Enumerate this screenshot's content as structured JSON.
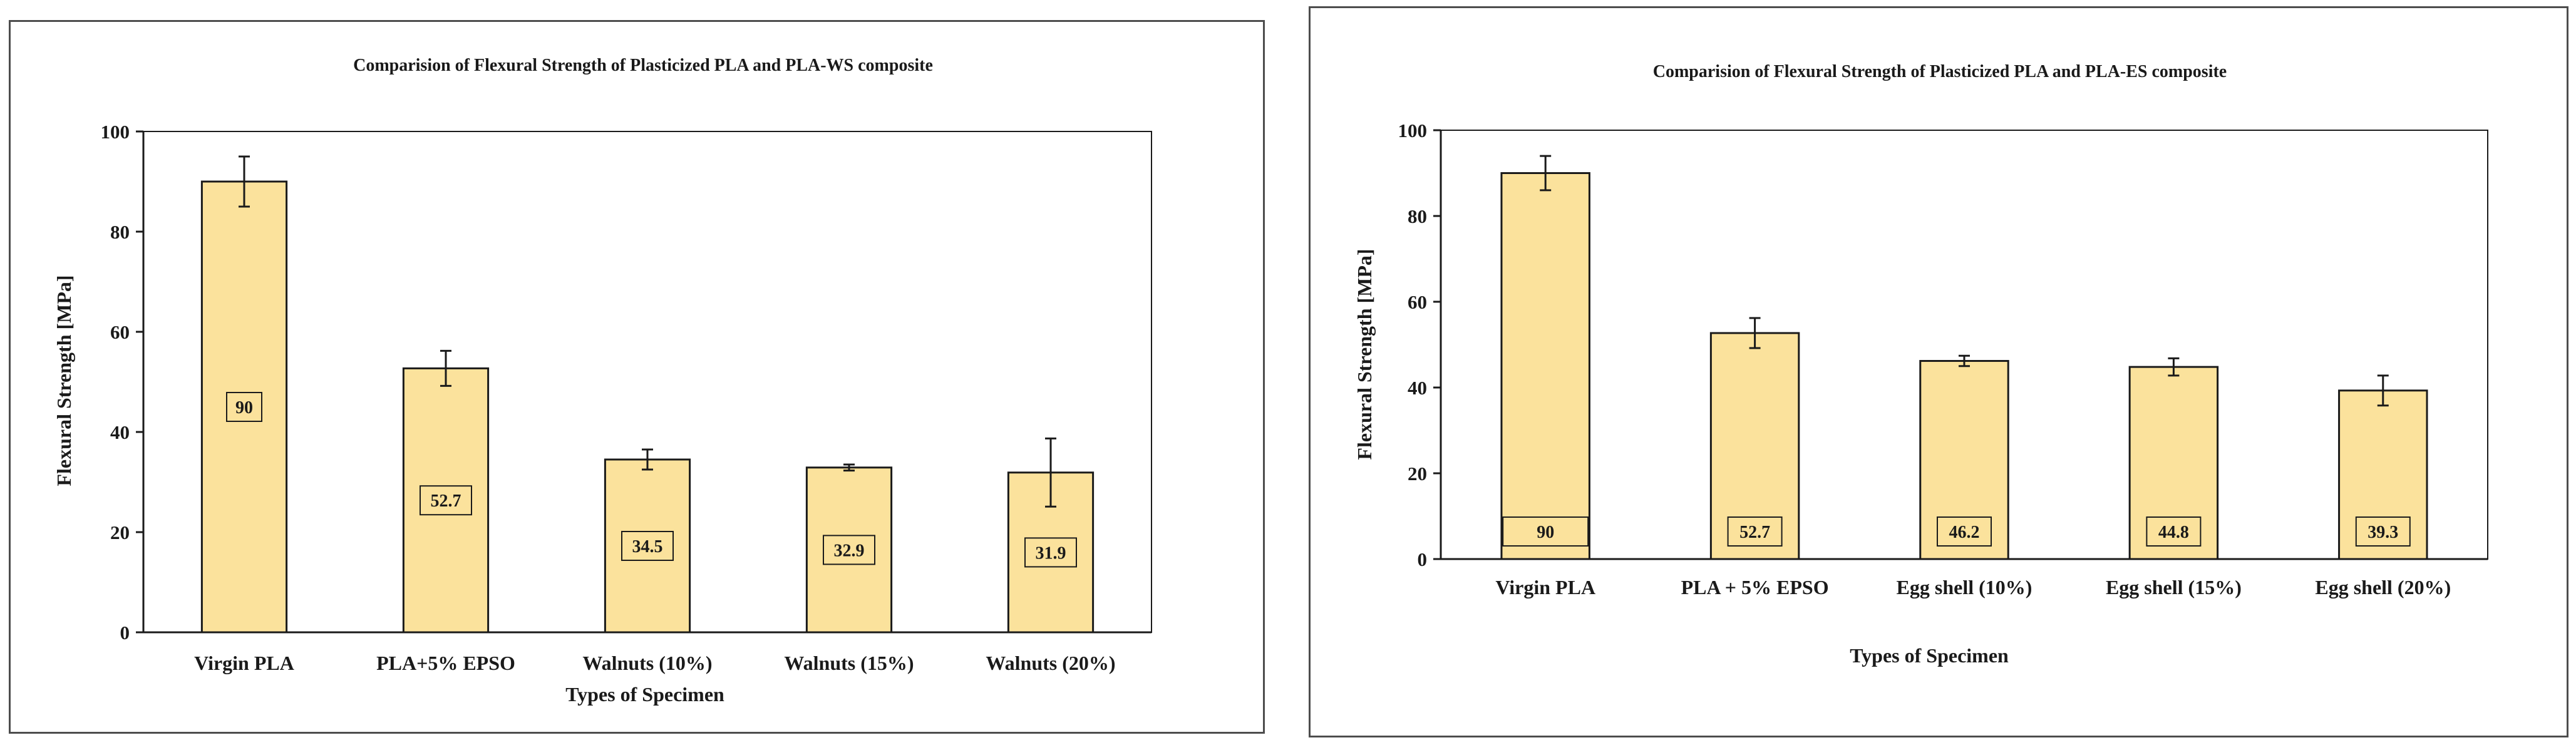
{
  "chart_data": [
    {
      "type": "bar",
      "title": "Comparision of Flexural Strength of Plasticized PLA and PLA-WS composite",
      "xlabel": "Types of Specimen",
      "ylabel": "Flexural Strength  [MPa]",
      "categories": [
        "Virgin PLA",
        "PLA+5% EPSO",
        "Walnuts (10%)",
        "Walnuts (15%)",
        "Walnuts (20%)"
      ],
      "values": [
        90,
        52.7,
        34.5,
        32.9,
        31.9
      ],
      "value_labels": [
        "90",
        "52.7",
        "34.5",
        "32.9",
        "31.9"
      ],
      "error": [
        5,
        3.5,
        2,
        0.6,
        6.8
      ],
      "ylim": [
        0,
        100
      ],
      "yticks": [
        0,
        20,
        40,
        60,
        80,
        100
      ],
      "label_position": "middle",
      "bar_color": "#fbe29c",
      "bar_edge_color": "#1a1a1a",
      "grid": false,
      "legend": false
    },
    {
      "type": "bar",
      "title": "Comparision of Flexural Strength of Plasticized PLA and PLA-ES composite",
      "xlabel": "Types of Specimen",
      "ylabel": "Flexural Strength  [MPa]",
      "categories": [
        "Virgin PLA",
        "PLA + 5%  EPSO",
        "Egg shell (10%)",
        "Egg shell (15%)",
        "Egg shell (20%)"
      ],
      "values": [
        90,
        52.7,
        46.2,
        44.8,
        39.3
      ],
      "value_labels": [
        "90",
        "52.7",
        "46.2",
        "44.8",
        "39.3"
      ],
      "error": [
        4,
        3.5,
        1.2,
        2,
        3.5
      ],
      "ylim": [
        0,
        100
      ],
      "yticks": [
        0,
        20,
        40,
        60,
        80,
        100
      ],
      "label_position": "low",
      "bar_color": "#fbe29c",
      "bar_edge_color": "#1a1a1a",
      "grid": false,
      "legend": false
    }
  ]
}
